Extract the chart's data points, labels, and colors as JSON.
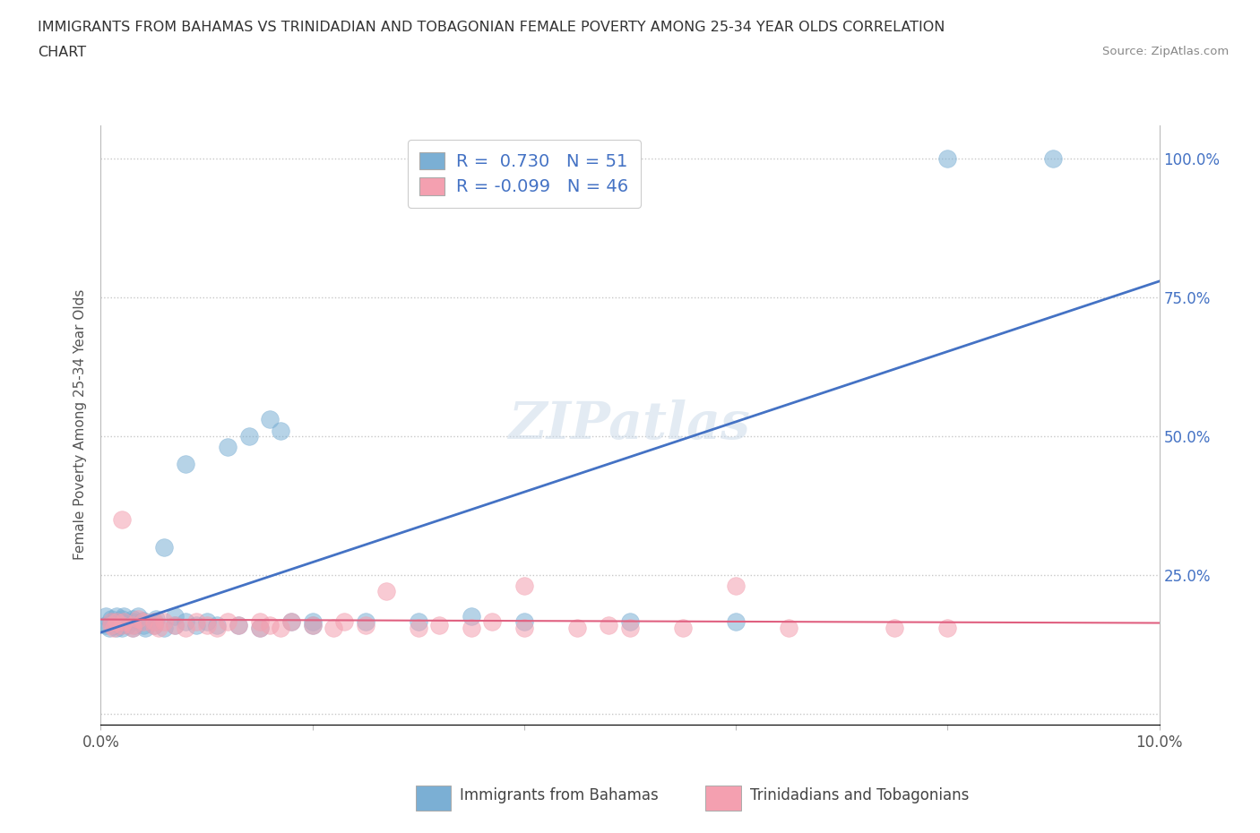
{
  "title_line1": "IMMIGRANTS FROM BAHAMAS VS TRINIDADIAN AND TOBAGONIAN FEMALE POVERTY AMONG 25-34 YEAR OLDS CORRELATION",
  "title_line2": "CHART",
  "source": "Source: ZipAtlas.com",
  "ylabel": "Female Poverty Among 25-34 Year Olds",
  "xlim": [
    0.0,
    0.1
  ],
  "ylim": [
    0.0,
    1.05
  ],
  "legend_entries": [
    {
      "label": "R =  0.730   N = 51",
      "color": "#a8c8e8"
    },
    {
      "label": "R = -0.099   N = 46",
      "color": "#f4a8b8"
    }
  ],
  "legend_label1": "Immigrants from Bahamas",
  "legend_label2": "Trinidadians and Tobagonians",
  "blue_color": "#7bafd4",
  "pink_color": "#f4a0b0",
  "blue_line_color": "#4472c4",
  "pink_line_color": "#e06080",
  "watermark": "ZIPatlas",
  "background_color": "#ffffff",
  "grid_color": "#c8c8c8",
  "title_color": "#333333",
  "axis_label_color": "#555555",
  "blue_scatter": [
    [
      0.0005,
      0.16
    ],
    [
      0.0005,
      0.175
    ],
    [
      0.0008,
      0.155
    ],
    [
      0.001,
      0.165
    ],
    [
      0.001,
      0.17
    ],
    [
      0.0012,
      0.16
    ],
    [
      0.0015,
      0.155
    ],
    [
      0.0015,
      0.175
    ],
    [
      0.0018,
      0.16
    ],
    [
      0.002,
      0.165
    ],
    [
      0.002,
      0.155
    ],
    [
      0.002,
      0.17
    ],
    [
      0.0022,
      0.175
    ],
    [
      0.0025,
      0.16
    ],
    [
      0.003,
      0.165
    ],
    [
      0.003,
      0.155
    ],
    [
      0.003,
      0.17
    ],
    [
      0.0032,
      0.16
    ],
    [
      0.0035,
      0.175
    ],
    [
      0.004,
      0.16
    ],
    [
      0.004,
      0.168
    ],
    [
      0.0042,
      0.155
    ],
    [
      0.005,
      0.16
    ],
    [
      0.005,
      0.165
    ],
    [
      0.0052,
      0.17
    ],
    [
      0.006,
      0.155
    ],
    [
      0.006,
      0.3
    ],
    [
      0.007,
      0.16
    ],
    [
      0.007,
      0.175
    ],
    [
      0.008,
      0.165
    ],
    [
      0.008,
      0.45
    ],
    [
      0.009,
      0.16
    ],
    [
      0.01,
      0.165
    ],
    [
      0.011,
      0.16
    ],
    [
      0.012,
      0.48
    ],
    [
      0.013,
      0.16
    ],
    [
      0.014,
      0.5
    ],
    [
      0.015,
      0.155
    ],
    [
      0.016,
      0.53
    ],
    [
      0.017,
      0.51
    ],
    [
      0.018,
      0.165
    ],
    [
      0.02,
      0.165
    ],
    [
      0.02,
      0.16
    ],
    [
      0.025,
      0.165
    ],
    [
      0.03,
      0.165
    ],
    [
      0.035,
      0.175
    ],
    [
      0.04,
      0.165
    ],
    [
      0.05,
      0.165
    ],
    [
      0.06,
      0.165
    ],
    [
      0.08,
      1.0
    ],
    [
      0.09,
      1.0
    ]
  ],
  "pink_scatter": [
    [
      0.001,
      0.16
    ],
    [
      0.001,
      0.165
    ],
    [
      0.0012,
      0.155
    ],
    [
      0.0015,
      0.165
    ],
    [
      0.002,
      0.16
    ],
    [
      0.002,
      0.35
    ],
    [
      0.0022,
      0.165
    ],
    [
      0.003,
      0.16
    ],
    [
      0.003,
      0.155
    ],
    [
      0.0035,
      0.17
    ],
    [
      0.004,
      0.165
    ],
    [
      0.005,
      0.16
    ],
    [
      0.005,
      0.165
    ],
    [
      0.0055,
      0.155
    ],
    [
      0.006,
      0.165
    ],
    [
      0.007,
      0.16
    ],
    [
      0.008,
      0.155
    ],
    [
      0.009,
      0.165
    ],
    [
      0.01,
      0.16
    ],
    [
      0.011,
      0.155
    ],
    [
      0.012,
      0.165
    ],
    [
      0.013,
      0.16
    ],
    [
      0.015,
      0.155
    ],
    [
      0.015,
      0.165
    ],
    [
      0.016,
      0.16
    ],
    [
      0.017,
      0.155
    ],
    [
      0.018,
      0.165
    ],
    [
      0.02,
      0.16
    ],
    [
      0.022,
      0.155
    ],
    [
      0.023,
      0.165
    ],
    [
      0.025,
      0.16
    ],
    [
      0.027,
      0.22
    ],
    [
      0.03,
      0.155
    ],
    [
      0.032,
      0.16
    ],
    [
      0.035,
      0.155
    ],
    [
      0.037,
      0.165
    ],
    [
      0.04,
      0.155
    ],
    [
      0.04,
      0.23
    ],
    [
      0.045,
      0.155
    ],
    [
      0.048,
      0.16
    ],
    [
      0.05,
      0.155
    ],
    [
      0.055,
      0.155
    ],
    [
      0.06,
      0.23
    ],
    [
      0.065,
      0.155
    ],
    [
      0.075,
      0.155
    ],
    [
      0.08,
      0.155
    ]
  ]
}
